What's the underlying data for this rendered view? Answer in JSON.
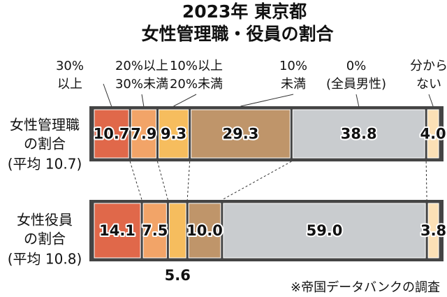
{
  "chart_data": {
    "type": "stacked-bar-100",
    "title": "2023年 東京都",
    "subtitle": "女性管理職・役員の割合",
    "categories": [
      {
        "lines": [
          "女性管理職",
          "の割合"
        ],
        "average": "(平均 10.7)"
      },
      {
        "lines": [
          "女性役員",
          "の割合"
        ],
        "average": "(平均 10.8)"
      }
    ],
    "series": [
      {
        "name": [
          "30%",
          "以上"
        ],
        "color": "#e0684a",
        "values": [
          10.7,
          14.1
        ],
        "value_labels": [
          "10.7",
          "14.1"
        ]
      },
      {
        "name": [
          "20%以上",
          "30%未満"
        ],
        "color": "#f2a468",
        "values": [
          7.9,
          7.5
        ],
        "value_labels": [
          "7.9",
          "7.5"
        ]
      },
      {
        "name": [
          "10%以上",
          "20%未満"
        ],
        "color": "#f6bd5e",
        "values": [
          9.3,
          5.6
        ],
        "value_labels": [
          "9.3",
          "5.6"
        ]
      },
      {
        "name": [
          "10%",
          "未満"
        ],
        "color": "#bf956a",
        "values": [
          29.3,
          10.0
        ],
        "value_labels": [
          "29.3",
          "10.0"
        ]
      },
      {
        "name": [
          "0%",
          "(全員男性)"
        ],
        "color": "#c9cccf",
        "values": [
          38.8,
          59.0
        ],
        "value_labels": [
          "38.8",
          "59.0"
        ]
      },
      {
        "name": [
          "分から",
          "ない"
        ],
        "color": "#fbe0b6",
        "values": [
          4.0,
          3.8
        ],
        "value_labels": [
          "4.0",
          "3.8"
        ]
      }
    ],
    "source": "※帝国データバンクの調査"
  }
}
